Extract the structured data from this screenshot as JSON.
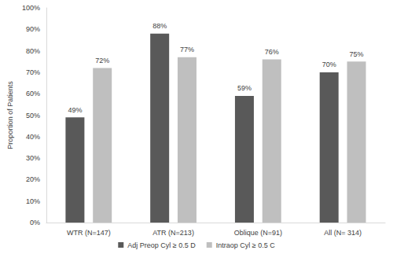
{
  "chart_data": {
    "type": "bar",
    "y_label": "Proportion of Patients",
    "categories": [
      "WTR (N=147)",
      "ATR (N=213)",
      "Oblique (N=91)",
      "All (N= 314)"
    ],
    "series": [
      {
        "name": "Adj Preop Cyl ≥ 0.5 D",
        "color": "#595959",
        "values": [
          49,
          88,
          59,
          70
        ],
        "value_labels": [
          "49%",
          "88%",
          "59%",
          "70%"
        ]
      },
      {
        "name": "Intraop Cyl ≥ 0.5 C",
        "color": "#bfbfbf",
        "values": [
          72,
          77,
          76,
          75
        ],
        "value_labels": [
          "72%",
          "77%",
          "76%",
          "75%"
        ]
      }
    ],
    "ylim": [
      0,
      100
    ],
    "yticks": [
      {
        "value": 0,
        "label": "0%"
      },
      {
        "value": 10,
        "label": "10%"
      },
      {
        "value": 20,
        "label": "20%"
      },
      {
        "value": 30,
        "label": "30%"
      },
      {
        "value": 40,
        "label": "40%"
      },
      {
        "value": 50,
        "label": "50%"
      },
      {
        "value": 60,
        "label": "60%"
      },
      {
        "value": 70,
        "label": "70%"
      },
      {
        "value": 80,
        "label": "80%"
      },
      {
        "value": 90,
        "label": "90%"
      },
      {
        "value": 100,
        "label": "100%"
      }
    ],
    "grid": false,
    "legend": "bottom",
    "data_labels": true
  }
}
